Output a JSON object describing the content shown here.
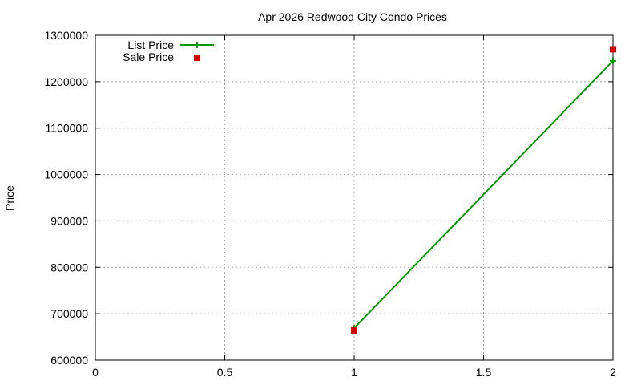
{
  "chart_data": {
    "type": "line",
    "title": "Apr 2026 Redwood City Condo Prices",
    "xlabel": "",
    "ylabel": "Price",
    "xlim": [
      0,
      2
    ],
    "ylim": [
      600000,
      1300000
    ],
    "x_ticks": [
      "0",
      "0.5",
      "1",
      "1.5",
      "2"
    ],
    "y_ticks": [
      "600000",
      "700000",
      "800000",
      "900000",
      "1000000",
      "1100000",
      "1200000",
      "1300000"
    ],
    "grid": true,
    "legend_position": "top-left",
    "series": [
      {
        "name": "List Price",
        "style": "linespoints",
        "marker": "plus",
        "color": "#009900",
        "x": [
          1,
          2
        ],
        "values": [
          669000,
          1245000
        ]
      },
      {
        "name": "Sale Price",
        "style": "points",
        "marker": "filled-square",
        "color": "#cc0000",
        "x": [
          1,
          2
        ],
        "values": [
          664000,
          1270000
        ]
      }
    ]
  },
  "legend": {
    "items": [
      {
        "label": "List Price"
      },
      {
        "label": "Sale Price"
      }
    ]
  }
}
